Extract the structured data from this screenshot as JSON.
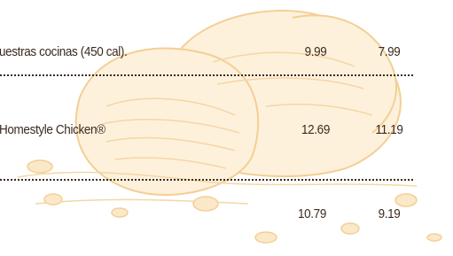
{
  "menu": {
    "rows": [
      {
        "item": "uestras cocinas (450 cal).",
        "prices": [
          "9.99",
          "7.99"
        ]
      },
      {
        "item": "Homestyle Chicken®",
        "prices": [
          "12.69",
          "11.19"
        ]
      },
      {
        "prices": [
          "10.79",
          "9.19"
        ]
      }
    ]
  }
}
